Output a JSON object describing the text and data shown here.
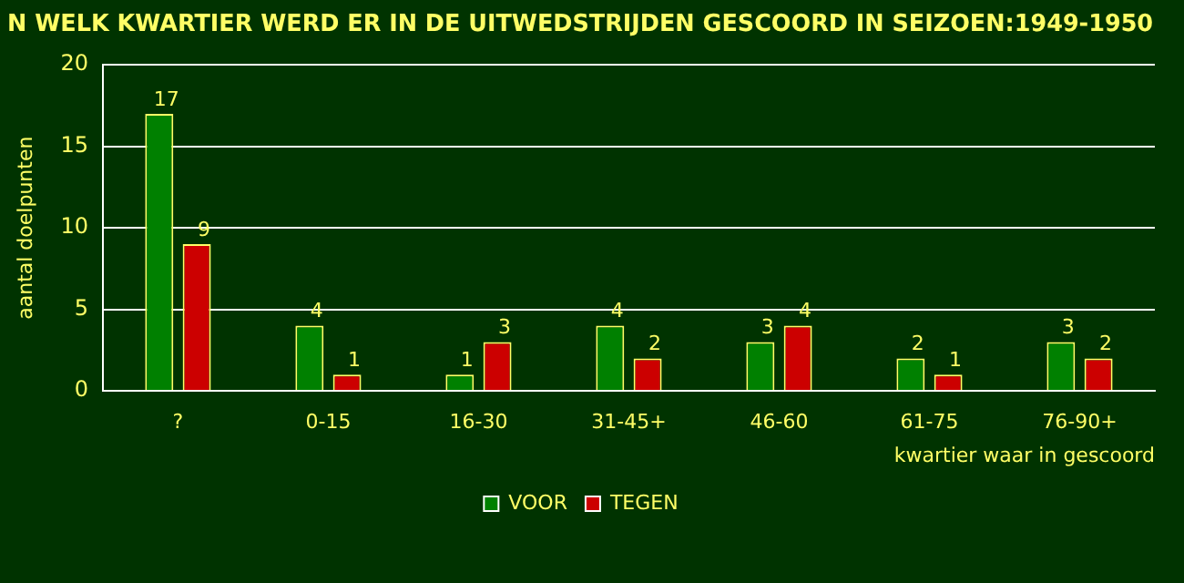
{
  "chart_data": {
    "type": "bar",
    "title": "N WELK KWARTIER WERD ER IN DE UITWEDSTRIJDEN GESCOORD IN SEIZOEN:1949-1950",
    "xlabel": "kwartier waar in gescoord",
    "ylabel": "aantal doelpunten",
    "categories": [
      "?",
      "0-15",
      "16-30",
      "31-45+",
      "46-60",
      "61-75",
      "76-90+"
    ],
    "series": [
      {
        "name": "VOOR",
        "color": "#008000",
        "values": [
          17,
          4,
          1,
          4,
          3,
          2,
          3
        ]
      },
      {
        "name": "TEGEN",
        "color": "#cc0000",
        "values": [
          9,
          1,
          3,
          2,
          4,
          1,
          2
        ]
      }
    ],
    "ylim": [
      0,
      20
    ],
    "yticks": [
      0,
      5,
      10,
      15,
      20
    ],
    "grid": "y",
    "legend": "bottom",
    "data_labels": true
  }
}
